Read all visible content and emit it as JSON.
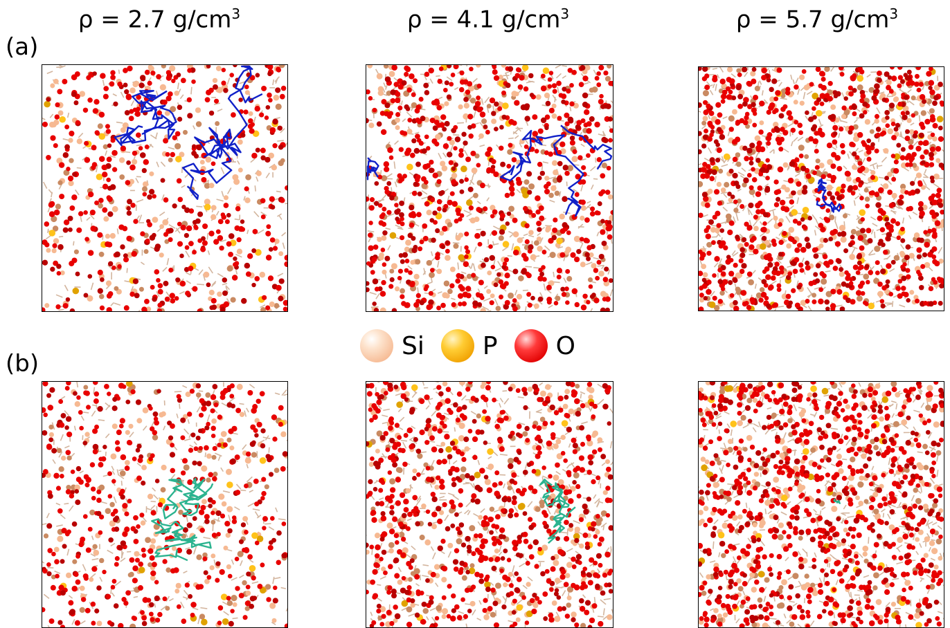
{
  "columns": [
    {
      "rho": "ρ = 2.7 g/cm",
      "exp": "3"
    },
    {
      "rho": "ρ = 4.1 g/cm",
      "exp": "3"
    },
    {
      "rho": "ρ = 5.7 g/cm",
      "exp": "3"
    }
  ],
  "rows": [
    {
      "label": "(a)",
      "path_color": "#1020c8"
    },
    {
      "label": "(b)",
      "path_color": "#2bb38f"
    }
  ],
  "legend": [
    {
      "symbol": "Si",
      "icon": "si-atom-icon"
    },
    {
      "symbol": "P",
      "icon": "p-atom-icon"
    },
    {
      "symbol": "O",
      "icon": "o-atom-icon"
    }
  ],
  "colors": {
    "si": "#f6b992",
    "p": "#ffc21a",
    "o": "#e80000",
    "bond": "#b07a50"
  }
}
